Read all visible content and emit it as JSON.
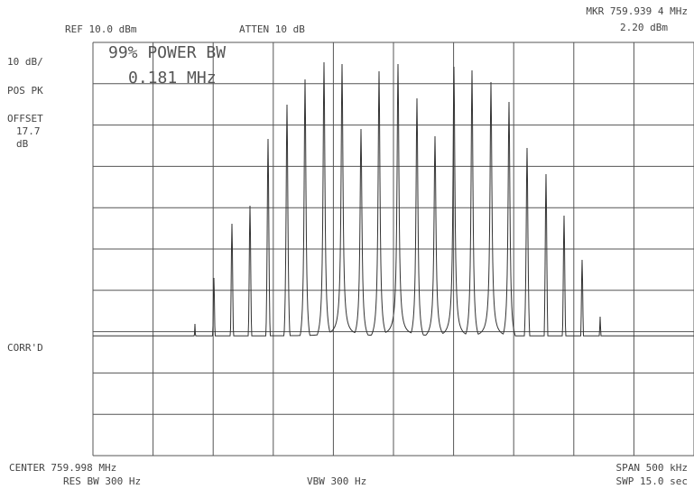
{
  "header": {
    "ref": "REF 10.0 dBm",
    "atten": "ATTEN 10 dB",
    "marker_freq": "MKR 759.939 4 MHz",
    "marker_level": "2.20 dBm"
  },
  "left_labels": {
    "scale": "10 dB/",
    "detector": "POS PK",
    "offset": "OFFSET",
    "offset_value": "17.7",
    "offset_unit": "dB",
    "corr": "CORR'D"
  },
  "measurement": {
    "title": "99% POWER BW",
    "value": "0.181 MHz"
  },
  "footer": {
    "center": "CENTER 759.998 MHz",
    "res_bw": "RES BW 300 Hz",
    "vbw": "VBW 300 Hz",
    "span": "SPAN 500 kHz",
    "sweep": "SWP 15.0 sec"
  }
}
